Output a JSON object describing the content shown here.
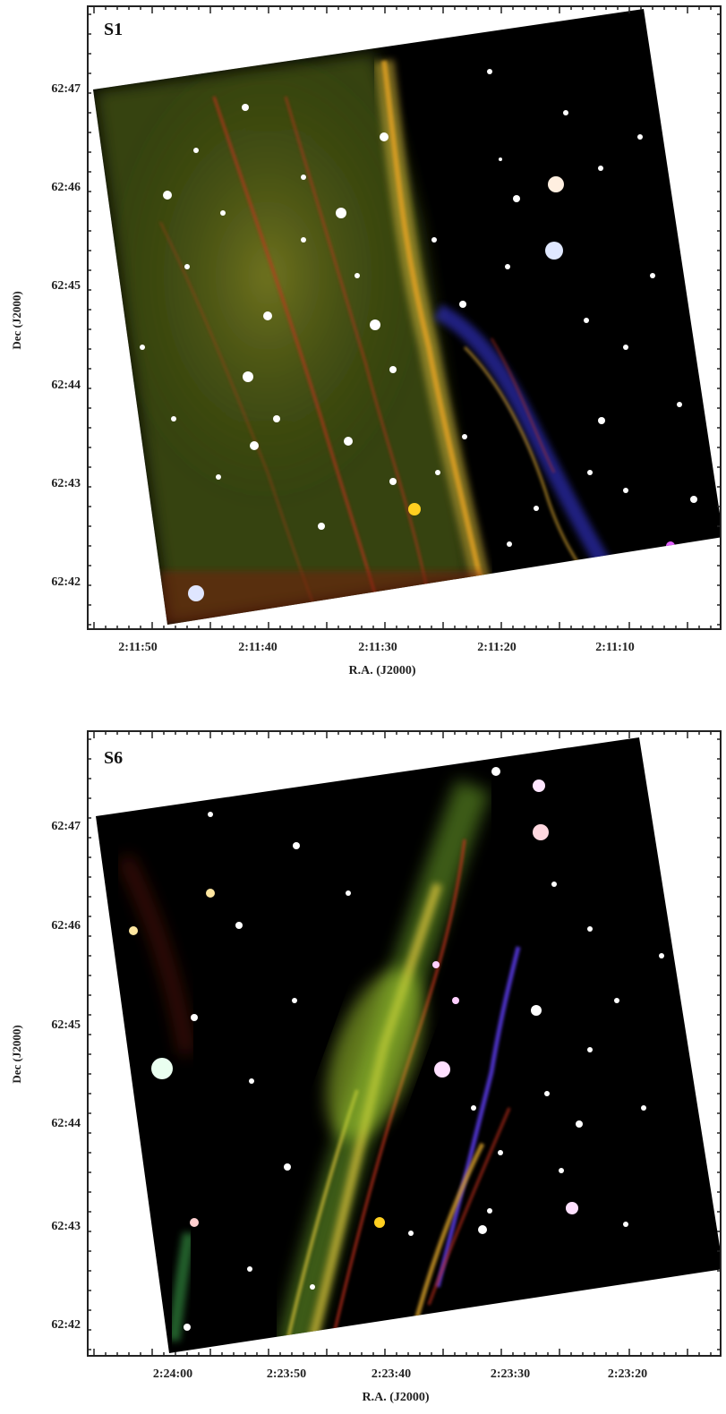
{
  "panels": [
    {
      "label": "S1",
      "ylabel": "Dec (J2000)",
      "xlabel": "R.A. (J2000)",
      "yticks": [
        "62:47",
        "62:46",
        "62:45",
        "62:44",
        "62:43",
        "62:42"
      ],
      "xticks": [
        "2:11:50",
        "2:11:40",
        "2:11:30",
        "2:11:20",
        "2:11:10"
      ]
    },
    {
      "label": "S6",
      "ylabel": "Dec (J2000)",
      "xlabel": "R.A. (J2000)",
      "yticks": [
        "62:47",
        "62:46",
        "62:45",
        "62:44",
        "62:43",
        "62:42"
      ],
      "xticks": [
        "2:24:00",
        "2:23:50",
        "2:23:40",
        "2:23:30",
        "2:23:20"
      ]
    }
  ],
  "colors": {
    "sky": "#000000",
    "filament_red": "#c8321e",
    "filament_green": "#6fa82a",
    "filament_yellow": "#d8c23a",
    "filament_blue": "#3a3ae6",
    "frame": "#222222"
  }
}
